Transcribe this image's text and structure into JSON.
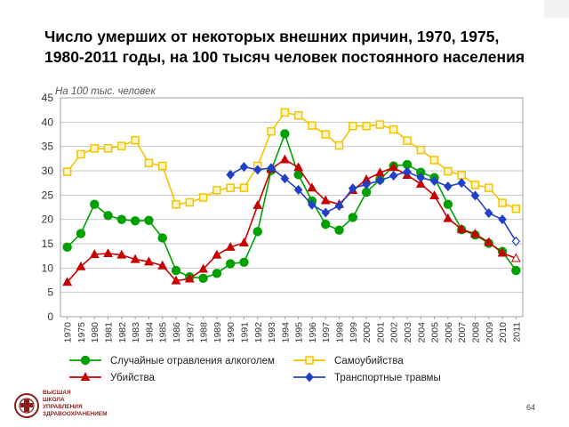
{
  "title": "Число умерших от некоторых внешних причин, 1970, 1975, 1980-2011 годы, на 100 тысяч человек постоянного населения",
  "page_number": "64",
  "logo": {
    "lines": [
      "ВЫСШАЯ",
      "ШКОЛА",
      "УПРАВЛЕНИЯ",
      "ЗДРАВООХРАНЕНИЕМ"
    ]
  },
  "colors": {
    "alcohol": "#00a000",
    "suicide": "#f4c400",
    "murder": "#c80000",
    "transport": "#2040c8",
    "grid": "#c8c8c8",
    "frame": "#a0a0a0"
  },
  "chart_data": {
    "type": "line",
    "ylabel": "На 100 тыс. человек",
    "ylim": [
      0,
      45
    ],
    "yticks": [
      0,
      5,
      10,
      15,
      20,
      25,
      30,
      35,
      40,
      45
    ],
    "grid": true,
    "legend_position": "bottom",
    "categories": [
      "1970",
      "1975",
      "1980",
      "1981",
      "1982",
      "1983",
      "1984",
      "1985",
      "1986",
      "1987",
      "1988",
      "1989",
      "1990",
      "1991",
      "1992",
      "1993",
      "1994",
      "1995",
      "1996",
      "1997",
      "1998",
      "1999",
      "2000",
      "2001",
      "2002",
      "2003",
      "2004",
      "2005",
      "2006",
      "2007",
      "2008",
      "2009",
      "2010",
      "2011"
    ],
    "series": [
      {
        "key": "alcohol",
        "name": "Случайные отравления алкоголем",
        "marker": "circle",
        "values": [
          14.3,
          17.1,
          23.1,
          20.8,
          20.0,
          19.7,
          19.8,
          16.2,
          9.5,
          8.2,
          7.9,
          8.9,
          10.9,
          11.2,
          17.5,
          30.1,
          37.6,
          29.2,
          23.8,
          19.0,
          17.8,
          20.4,
          25.6,
          28.2,
          31.0,
          31.3,
          29.7,
          28.6,
          23.1,
          17.9,
          16.8,
          15.1,
          13.4,
          9.5
        ]
      },
      {
        "key": "suicide",
        "name": "Самоубийства",
        "marker": "square",
        "values": [
          29.8,
          33.4,
          34.6,
          34.6,
          35.1,
          36.3,
          31.6,
          31.0,
          23.1,
          23.5,
          24.5,
          26.0,
          26.5,
          26.5,
          31.0,
          38.1,
          42.0,
          41.4,
          39.3,
          37.5,
          35.2,
          39.2,
          39.2,
          39.5,
          38.5,
          36.2,
          34.3,
          32.2,
          29.9,
          29.1,
          27.1,
          26.5,
          23.4,
          22.2
        ]
      },
      {
        "key": "murder",
        "name": "Убийства",
        "marker": "triangle",
        "values": [
          7.1,
          10.3,
          12.8,
          13.0,
          12.7,
          11.8,
          11.3,
          10.5,
          7.4,
          7.8,
          9.8,
          12.7,
          14.3,
          15.2,
          22.9,
          30.4,
          32.3,
          30.7,
          26.5,
          23.9,
          23.1,
          26.0,
          28.2,
          29.6,
          30.7,
          29.1,
          27.3,
          24.9,
          20.2,
          18.0,
          17.0,
          15.3,
          13.1,
          12.0
        ]
      },
      {
        "key": "transport",
        "name": "Транспортные травмы",
        "marker": "diamond",
        "values": [
          null,
          null,
          null,
          null,
          null,
          null,
          null,
          null,
          null,
          null,
          null,
          null,
          29.2,
          30.8,
          30.2,
          30.6,
          28.4,
          26.1,
          23.0,
          21.4,
          22.8,
          26.4,
          27.2,
          28.0,
          29.0,
          29.8,
          28.6,
          27.9,
          26.8,
          27.5,
          24.9,
          21.3,
          20.0,
          15.5
        ]
      }
    ]
  }
}
